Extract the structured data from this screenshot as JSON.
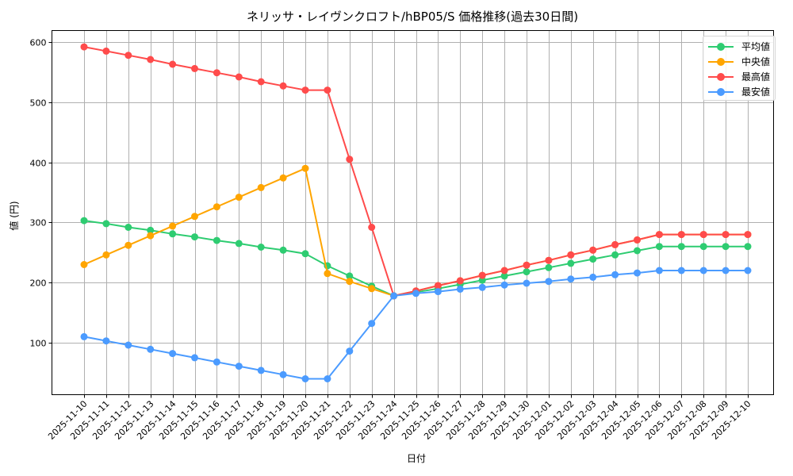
{
  "chart_data": {
    "type": "line",
    "title": "ネリッサ・レイヴンクロフト/hBP05/S 価格推移(過去30日間)",
    "xlabel": "日付",
    "ylabel": "値 (円)",
    "ylim": [
      10,
      620
    ],
    "yticks": [
      100,
      200,
      300,
      400,
      500,
      600
    ],
    "grid": true,
    "legend_position": "upper right",
    "x": [
      "2025-11-10",
      "2025-11-11",
      "2025-11-12",
      "2025-11-13",
      "2025-11-14",
      "2025-11-15",
      "2025-11-16",
      "2025-11-17",
      "2025-11-18",
      "2025-11-19",
      "2025-11-20",
      "2025-11-21",
      "2025-11-22",
      "2025-11-23",
      "2025-11-24",
      "2025-11-25",
      "2025-11-26",
      "2025-11-27",
      "2025-11-28",
      "2025-11-29",
      "2025-11-30",
      "2025-12-01",
      "2025-12-02",
      "2025-12-03",
      "2025-12-04",
      "2025-12-05",
      "2025-12-06",
      "2025-12-07",
      "2025-12-08",
      "2025-12-09",
      "2025-12-10"
    ],
    "series": [
      {
        "name": "平均値",
        "color": "#2ecc71",
        "values": [
          303,
          298,
          292,
          287,
          281,
          276,
          270,
          265,
          259,
          254,
          248,
          228,
          211,
          194,
          178,
          184,
          190,
          197,
          204,
          211,
          218,
          225,
          232,
          239,
          246,
          253,
          260,
          260,
          260,
          260,
          260
        ]
      },
      {
        "name": "中央値",
        "color": "#ffa500",
        "values": [
          230,
          246,
          262,
          278,
          294,
          310,
          326,
          342,
          358,
          374,
          390,
          215,
          202,
          190,
          178,
          186,
          195,
          203,
          212,
          220,
          229,
          237,
          246,
          254,
          263,
          271,
          280,
          280,
          280,
          280,
          280
        ]
      },
      {
        "name": "最高値",
        "color": "#ff4b4b",
        "values": [
          592,
          585,
          578,
          571,
          563,
          556,
          549,
          542,
          534,
          527,
          520,
          520,
          405,
          292,
          178,
          186,
          195,
          203,
          212,
          220,
          229,
          237,
          246,
          254,
          263,
          271,
          280,
          280,
          280,
          280,
          280
        ]
      },
      {
        "name": "最安値",
        "color": "#4b9bff",
        "values": [
          110,
          103,
          96,
          89,
          82,
          75,
          68,
          61,
          54,
          47,
          40,
          40,
          86,
          132,
          178,
          182,
          185,
          189,
          192,
          196,
          199,
          202,
          206,
          209,
          213,
          216,
          220,
          220,
          220,
          220,
          220
        ]
      }
    ]
  }
}
